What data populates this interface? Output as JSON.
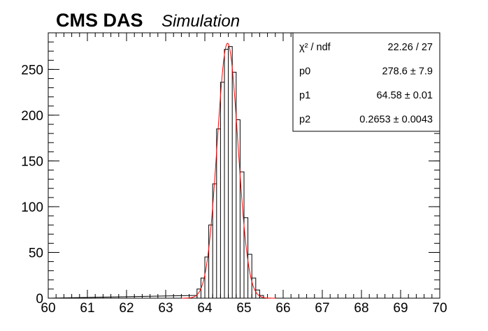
{
  "title": {
    "experiment": "CMS DAS",
    "label": "Simulation"
  },
  "stats_box": {
    "rows": [
      {
        "name": "χ² / ndf",
        "value": "22.26 / 27"
      },
      {
        "name": "p0",
        "value": "278.6 ± 7.9"
      },
      {
        "name": "p1",
        "value": "64.58 ± 0.01"
      },
      {
        "name": "p2",
        "value": "0.2653 ± 0.0043"
      }
    ]
  },
  "colors": {
    "histogram": "#000000",
    "fit": "#ff0000"
  },
  "chart_data": {
    "type": "line",
    "xlim": [
      60,
      70
    ],
    "ylim": [
      0,
      290
    ],
    "x_ticks": [
      60,
      61,
      62,
      63,
      64,
      65,
      66,
      67,
      68,
      69,
      70
    ],
    "y_ticks": [
      0,
      50,
      100,
      150,
      200,
      250
    ],
    "grid": false,
    "legend": "top-right",
    "histogram": {
      "bin_width": 0.1,
      "bins": [
        {
          "x": 63.7,
          "y": 3
        },
        {
          "x": 63.8,
          "y": 10
        },
        {
          "x": 63.9,
          "y": 22
        },
        {
          "x": 64.0,
          "y": 45
        },
        {
          "x": 64.1,
          "y": 80
        },
        {
          "x": 64.2,
          "y": 125
        },
        {
          "x": 64.3,
          "y": 185
        },
        {
          "x": 64.4,
          "y": 236
        },
        {
          "x": 64.5,
          "y": 272
        },
        {
          "x": 64.6,
          "y": 275
        },
        {
          "x": 64.7,
          "y": 247
        },
        {
          "x": 64.8,
          "y": 195
        },
        {
          "x": 64.9,
          "y": 138
        },
        {
          "x": 65.0,
          "y": 88
        },
        {
          "x": 65.1,
          "y": 48
        },
        {
          "x": 65.2,
          "y": 22
        },
        {
          "x": 65.3,
          "y": 9
        },
        {
          "x": 65.4,
          "y": 3
        }
      ]
    },
    "fit": {
      "p0": 278.6,
      "p1": 64.58,
      "p2": 0.2653
    }
  }
}
